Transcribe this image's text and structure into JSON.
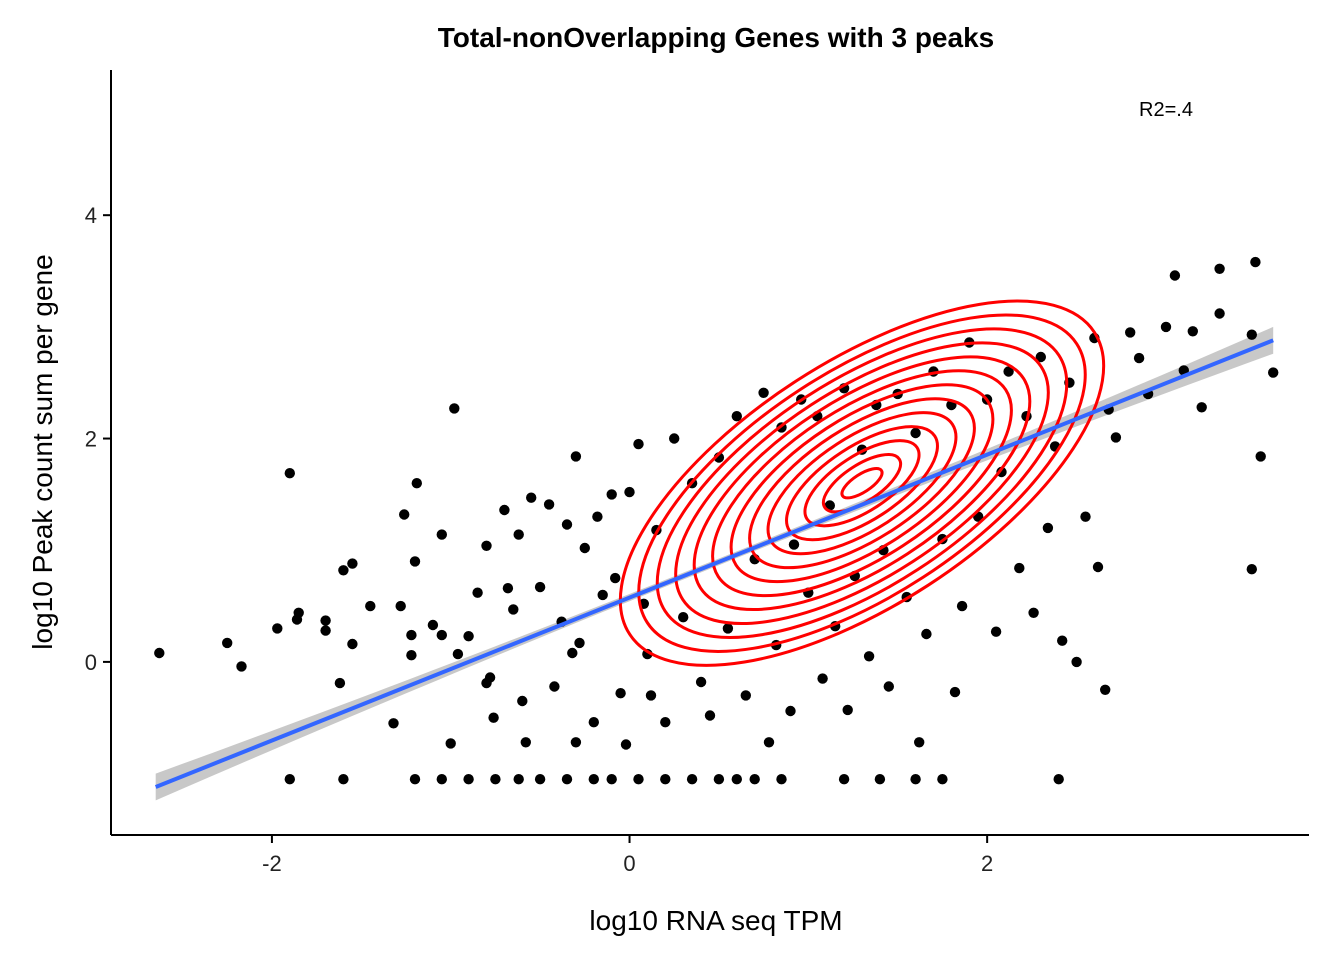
{
  "chart_data": {
    "type": "scatter",
    "title": "Total-nonOverlapping Genes with 3 peaks",
    "xlabel": "log10 RNA seq TPM",
    "ylabel": "log10 Peak count sum per gene",
    "xlim": [
      -2.9,
      3.8
    ],
    "ylim": [
      -1.55,
      5.3
    ],
    "x_ticks": [
      -2,
      0,
      2
    ],
    "y_ticks": [
      0,
      2,
      4
    ],
    "x_tick_labels": [
      "-2",
      "0",
      "2"
    ],
    "y_tick_labels": [
      "0",
      "2",
      "4"
    ],
    "grid": false,
    "legend": "none",
    "annotation": {
      "text": "R2=.4",
      "x": 3.0,
      "y": 4.95
    },
    "colors": {
      "points": "#000000",
      "fit_line": "#3366FF",
      "confidence_band": "#BEBEBE",
      "density_contours": "#FF0000"
    },
    "fit_line": {
      "x": [
        -2.65,
        3.6
      ],
      "y": [
        -1.12,
        2.88
      ],
      "band_halfwidth_ends": 0.12,
      "band_halfwidth_center": 0.03
    },
    "density_contours": {
      "center": [
        1.3,
        1.6
      ],
      "levels": 13,
      "rotation_deg": -33,
      "outer_semi_axes": [
        1.55,
        0.68
      ],
      "inner_semi_axes": [
        0.13,
        0.05
      ]
    },
    "series": [
      {
        "points": [
          [
            -2.63,
            0.08
          ],
          [
            -2.25,
            0.17
          ],
          [
            -2.17,
            -0.04
          ],
          [
            -1.9,
            1.69
          ],
          [
            -1.97,
            0.3
          ],
          [
            -1.85,
            0.44
          ],
          [
            -1.86,
            0.38
          ],
          [
            -1.7,
            0.37
          ],
          [
            -1.7,
            0.28
          ],
          [
            -1.62,
            -0.19
          ],
          [
            -1.6,
            0.82
          ],
          [
            -1.55,
            0.88
          ],
          [
            -1.55,
            0.16
          ],
          [
            -1.45,
            0.5
          ],
          [
            -1.32,
            -0.55
          ],
          [
            -1.26,
            1.32
          ],
          [
            -1.19,
            1.6
          ],
          [
            -1.2,
            0.9
          ],
          [
            -1.28,
            0.5
          ],
          [
            -1.22,
            0.24
          ],
          [
            -1.22,
            0.06
          ],
          [
            -1.1,
            0.33
          ],
          [
            -1.05,
            1.14
          ],
          [
            -1.05,
            0.24
          ],
          [
            -1.0,
            -0.73
          ],
          [
            -0.98,
            2.27
          ],
          [
            -0.96,
            0.07
          ],
          [
            -0.9,
            0.23
          ],
          [
            -0.85,
            0.62
          ],
          [
            -0.8,
            1.04
          ],
          [
            -0.78,
            -0.14
          ],
          [
            -0.76,
            -0.5
          ],
          [
            -0.8,
            -0.19
          ],
          [
            -0.7,
            1.36
          ],
          [
            -0.68,
            0.66
          ],
          [
            -0.65,
            0.47
          ],
          [
            -0.62,
            1.14
          ],
          [
            -0.6,
            -0.35
          ],
          [
            -0.58,
            -0.72
          ],
          [
            -0.55,
            1.47
          ],
          [
            -0.5,
            0.67
          ],
          [
            -0.45,
            1.41
          ],
          [
            -0.42,
            -0.22
          ],
          [
            -0.38,
            0.36
          ],
          [
            -0.35,
            1.23
          ],
          [
            -0.32,
            0.08
          ],
          [
            -0.3,
            -0.72
          ],
          [
            -0.3,
            1.84
          ],
          [
            -0.28,
            0.17
          ],
          [
            -0.25,
            1.02
          ],
          [
            -0.2,
            -0.54
          ],
          [
            -0.18,
            1.3
          ],
          [
            -0.15,
            0.6
          ],
          [
            -0.1,
            1.5
          ],
          [
            -0.08,
            0.75
          ],
          [
            -0.05,
            -0.28
          ],
          [
            -0.02,
            -0.74
          ],
          [
            0.0,
            1.52
          ],
          [
            0.05,
            1.95
          ],
          [
            0.08,
            0.52
          ],
          [
            0.1,
            0.07
          ],
          [
            0.12,
            -0.3
          ],
          [
            0.15,
            1.18
          ],
          [
            0.2,
            -0.54
          ],
          [
            0.25,
            2.0
          ],
          [
            0.3,
            0.4
          ],
          [
            0.35,
            1.6
          ],
          [
            0.4,
            -0.18
          ],
          [
            0.45,
            -0.48
          ],
          [
            0.5,
            1.83
          ],
          [
            0.55,
            0.3
          ],
          [
            0.6,
            2.2
          ],
          [
            0.65,
            -0.3
          ],
          [
            0.7,
            0.92
          ],
          [
            0.75,
            2.41
          ],
          [
            0.78,
            -0.72
          ],
          [
            0.82,
            0.15
          ],
          [
            0.85,
            2.1
          ],
          [
            0.9,
            -0.44
          ],
          [
            0.92,
            1.05
          ],
          [
            0.96,
            2.35
          ],
          [
            1.0,
            0.62
          ],
          [
            1.05,
            2.2
          ],
          [
            1.08,
            -0.15
          ],
          [
            1.12,
            1.4
          ],
          [
            1.15,
            0.32
          ],
          [
            1.2,
            2.45
          ],
          [
            1.22,
            -0.43
          ],
          [
            1.26,
            0.77
          ],
          [
            1.3,
            1.9
          ],
          [
            1.34,
            0.05
          ],
          [
            1.38,
            2.3
          ],
          [
            1.42,
            1.0
          ],
          [
            1.45,
            -0.22
          ],
          [
            1.5,
            2.4
          ],
          [
            1.55,
            0.58
          ],
          [
            1.6,
            2.05
          ],
          [
            1.62,
            -0.72
          ],
          [
            1.66,
            0.25
          ],
          [
            1.7,
            2.6
          ],
          [
            1.75,
            1.1
          ],
          [
            1.8,
            2.3
          ],
          [
            1.82,
            -0.27
          ],
          [
            1.86,
            0.5
          ],
          [
            1.9,
            2.86
          ],
          [
            1.95,
            1.3
          ],
          [
            2.0,
            2.35
          ],
          [
            2.05,
            0.27
          ],
          [
            2.08,
            1.7
          ],
          [
            2.12,
            2.6
          ],
          [
            2.18,
            0.84
          ],
          [
            2.22,
            2.2
          ],
          [
            2.26,
            0.44
          ],
          [
            2.3,
            2.73
          ],
          [
            2.34,
            1.2
          ],
          [
            2.38,
            1.93
          ],
          [
            2.42,
            0.19
          ],
          [
            2.46,
            2.5
          ],
          [
            2.5,
            0.0
          ],
          [
            2.55,
            1.3
          ],
          [
            2.6,
            2.9
          ],
          [
            2.62,
            0.85
          ],
          [
            2.66,
            -0.25
          ],
          [
            2.68,
            2.26
          ],
          [
            2.72,
            2.01
          ],
          [
            2.8,
            2.95
          ],
          [
            2.85,
            2.72
          ],
          [
            2.9,
            2.4
          ],
          [
            3.0,
            3.0
          ],
          [
            3.05,
            3.46
          ],
          [
            3.1,
            2.61
          ],
          [
            3.15,
            2.96
          ],
          [
            3.2,
            2.28
          ],
          [
            3.3,
            3.52
          ],
          [
            3.3,
            3.12
          ],
          [
            3.48,
            2.93
          ],
          [
            3.5,
            3.58
          ],
          [
            3.53,
            1.84
          ],
          [
            3.48,
            0.83
          ],
          [
            3.6,
            2.59
          ],
          [
            -1.9,
            -1.05
          ],
          [
            -1.6,
            -1.05
          ],
          [
            -1.2,
            -1.05
          ],
          [
            -1.05,
            -1.05
          ],
          [
            -0.9,
            -1.05
          ],
          [
            -0.75,
            -1.05
          ],
          [
            -0.62,
            -1.05
          ],
          [
            -0.5,
            -1.05
          ],
          [
            -0.35,
            -1.05
          ],
          [
            -0.2,
            -1.05
          ],
          [
            -0.1,
            -1.05
          ],
          [
            0.05,
            -1.05
          ],
          [
            0.2,
            -1.05
          ],
          [
            0.35,
            -1.05
          ],
          [
            0.5,
            -1.05
          ],
          [
            0.6,
            -1.05
          ],
          [
            0.7,
            -1.05
          ],
          [
            0.85,
            -1.05
          ],
          [
            1.2,
            -1.05
          ],
          [
            1.4,
            -1.05
          ],
          [
            1.6,
            -1.05
          ],
          [
            1.75,
            -1.05
          ],
          [
            2.4,
            -1.05
          ]
        ]
      }
    ]
  }
}
